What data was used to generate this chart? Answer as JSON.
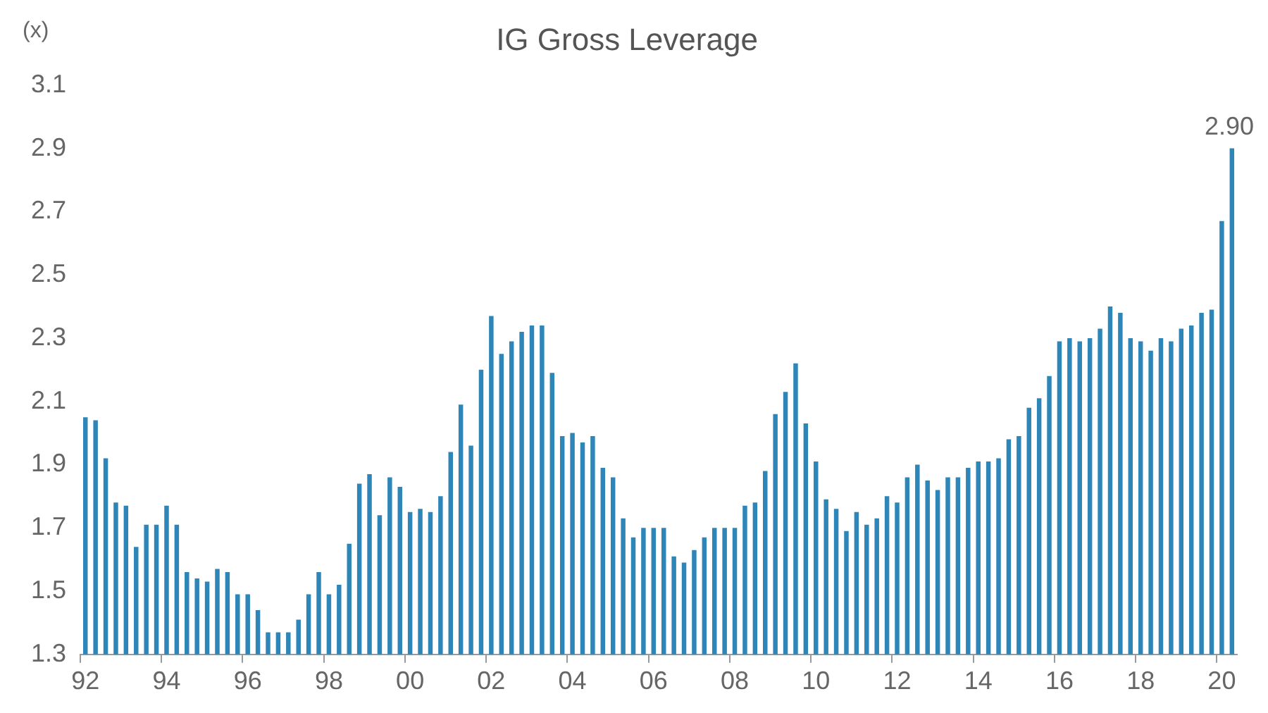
{
  "chart_data": {
    "type": "bar",
    "title": "IG Gross Leverage",
    "ylabel": "(x)",
    "categories": [
      "92",
      null,
      null,
      null,
      null,
      null,
      null,
      null,
      "94",
      null,
      null,
      null,
      null,
      null,
      null,
      null,
      "96",
      null,
      null,
      null,
      null,
      null,
      null,
      null,
      "98",
      null,
      null,
      null,
      null,
      null,
      null,
      null,
      "00",
      null,
      null,
      null,
      null,
      null,
      null,
      null,
      "02",
      null,
      null,
      null,
      null,
      null,
      null,
      null,
      "04",
      null,
      null,
      null,
      null,
      null,
      null,
      null,
      "06",
      null,
      null,
      null,
      null,
      null,
      null,
      null,
      "08",
      null,
      null,
      null,
      null,
      null,
      null,
      null,
      "10",
      null,
      null,
      null,
      null,
      null,
      null,
      null,
      "12",
      null,
      null,
      null,
      null,
      null,
      null,
      null,
      "14",
      null,
      null,
      null,
      null,
      null,
      null,
      null,
      "16",
      null,
      null,
      null,
      null,
      null,
      null,
      null,
      "18",
      null,
      null,
      null,
      null,
      null,
      null,
      null,
      "20",
      null
    ],
    "values": [
      2.05,
      2.04,
      1.92,
      1.78,
      1.77,
      1.64,
      1.71,
      1.71,
      1.77,
      1.71,
      1.56,
      1.54,
      1.53,
      1.57,
      1.56,
      1.49,
      1.49,
      1.44,
      1.37,
      1.37,
      1.37,
      1.41,
      1.49,
      1.56,
      1.49,
      1.52,
      1.65,
      1.84,
      1.87,
      1.74,
      1.86,
      1.83,
      1.75,
      1.76,
      1.75,
      1.8,
      1.94,
      2.09,
      1.96,
      2.2,
      2.37,
      2.25,
      2.29,
      2.32,
      2.34,
      2.34,
      2.19,
      1.99,
      2.0,
      1.97,
      1.99,
      1.89,
      1.86,
      1.73,
      1.67,
      1.7,
      1.7,
      1.7,
      1.61,
      1.59,
      1.63,
      1.67,
      1.7,
      1.7,
      1.7,
      1.77,
      1.78,
      1.88,
      2.06,
      2.13,
      2.22,
      2.03,
      1.91,
      1.79,
      1.76,
      1.69,
      1.75,
      1.71,
      1.73,
      1.8,
      1.78,
      1.86,
      1.9,
      1.85,
      1.82,
      1.86,
      1.86,
      1.89,
      1.91,
      1.91,
      1.92,
      1.98,
      1.99,
      2.08,
      2.11,
      2.18,
      2.29,
      2.3,
      2.29,
      2.3,
      2.33,
      2.4,
      2.38,
      2.3,
      2.29,
      2.26,
      2.3,
      2.29,
      2.33,
      2.34,
      2.38,
      2.39,
      2.67,
      2.9
    ],
    "value_labels": [
      null,
      null,
      null,
      null,
      null,
      null,
      null,
      null,
      null,
      null,
      null,
      null,
      null,
      null,
      null,
      null,
      null,
      null,
      null,
      null,
      null,
      null,
      null,
      null,
      null,
      null,
      null,
      null,
      null,
      null,
      null,
      null,
      null,
      null,
      null,
      null,
      null,
      null,
      null,
      null,
      null,
      null,
      null,
      null,
      null,
      null,
      null,
      null,
      null,
      null,
      null,
      null,
      null,
      null,
      null,
      null,
      null,
      null,
      null,
      null,
      null,
      null,
      null,
      null,
      null,
      null,
      null,
      null,
      null,
      null,
      null,
      null,
      null,
      null,
      null,
      null,
      null,
      null,
      null,
      null,
      null,
      null,
      null,
      null,
      null,
      null,
      null,
      null,
      null,
      null,
      null,
      null,
      null,
      null,
      null,
      null,
      null,
      null,
      null,
      null,
      null,
      null,
      null,
      null,
      null,
      null,
      null,
      null,
      null,
      null,
      null,
      null,
      null,
      "2.90"
    ],
    "color": "#2e86b8",
    "ylim": [
      1.3,
      3.1
    ],
    "yticks": [
      1.3,
      1.5,
      1.7,
      1.9,
      2.1,
      2.3,
      2.5,
      2.7,
      2.9,
      3.1
    ],
    "grid": false,
    "legend": false
  }
}
